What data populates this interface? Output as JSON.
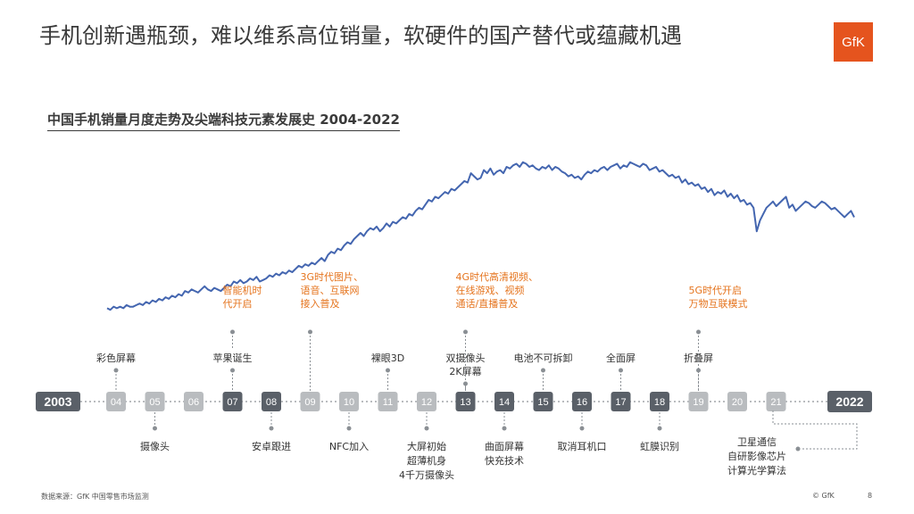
{
  "title": "手机创新遇瓶颈，难以维系高位销量，软硬件的国产替代或蕴藏机遇",
  "logo_text": "GfK",
  "footer": {
    "source": "数据来源：GfK 中国零售市场监测",
    "copyright": "© GfK",
    "page": "8"
  },
  "colors": {
    "line": "#4466b0",
    "accent": "#e5741e",
    "dark_box": "#5a6068",
    "light_box": "#b9bcbf",
    "logo": "#e5541e"
  },
  "chart_data": {
    "type": "line",
    "title": "中国手机销量月度走势及尖端科技元素发展史 2004-2022",
    "x_range": [
      "2004",
      "2022"
    ],
    "xlabel": "",
    "ylabel": "",
    "grid": false,
    "legend": "none",
    "series": [
      {
        "values": [
          6,
          5,
          7,
          6,
          7,
          6,
          8,
          7,
          7,
          8,
          9,
          8,
          10,
          9,
          11,
          10,
          12,
          11,
          13,
          12,
          14,
          13,
          15,
          14,
          17,
          16,
          18,
          17,
          16,
          18,
          20,
          18,
          17,
          19,
          18,
          17,
          19,
          21,
          20,
          23,
          22,
          24,
          22,
          23,
          25,
          24,
          26,
          23,
          24,
          25,
          27,
          26,
          28,
          27,
          29,
          28,
          30,
          29,
          31,
          33,
          32,
          34,
          33,
          35,
          34,
          36,
          38,
          36,
          40,
          42,
          41,
          44,
          43,
          46,
          48,
          47,
          50,
          52,
          54,
          52,
          55,
          57,
          56,
          58,
          55,
          57,
          60,
          58,
          61,
          60,
          62,
          64,
          63,
          66,
          65,
          68,
          70,
          69,
          72,
          75,
          74,
          77,
          76,
          78,
          80,
          79,
          82,
          81,
          83,
          85,
          87,
          86,
          92,
          90,
          88,
          89,
          94,
          92,
          95,
          91,
          93,
          94,
          92,
          96,
          95,
          97,
          98,
          96,
          99,
          98,
          96,
          97,
          95,
          94,
          96,
          95,
          97,
          94,
          96,
          95,
          93,
          92,
          90,
          91,
          89,
          90,
          88,
          91,
          93,
          92,
          94,
          93,
          95,
          96,
          94,
          96,
          97,
          98,
          95,
          97,
          96,
          99,
          98,
          97,
          96,
          98,
          97,
          94,
          95,
          96,
          93,
          94,
          92,
          90,
          91,
          89,
          90,
          86,
          88,
          85,
          86,
          84,
          85,
          82,
          83,
          80,
          82,
          78,
          80,
          79,
          81,
          77,
          79,
          76,
          78,
          74,
          75,
          72,
          73,
          70,
          55,
          62,
          66,
          70,
          72,
          74,
          71,
          73,
          75,
          77,
          70,
          72,
          68,
          70,
          72,
          74,
          73,
          71,
          70,
          72,
          74,
          73,
          71,
          69,
          70,
          68,
          66,
          64,
          66,
          68,
          64
        ]
      }
    ],
    "timeline": {
      "start_label": "2003",
      "end_label": "2022",
      "years": [
        "04",
        "05",
        "06",
        "07",
        "08",
        "09",
        "10",
        "11",
        "12",
        "13",
        "14",
        "15",
        "16",
        "17",
        "18",
        "19",
        "20",
        "21"
      ],
      "dark_years": [
        "07",
        "08",
        "13",
        "14",
        "15",
        "16",
        "17",
        "18"
      ]
    },
    "annotations_above": [
      {
        "year": "04",
        "lines": [
          "彩色屏幕"
        ]
      },
      {
        "year": "07",
        "lines": [
          "苹果诞生"
        ]
      },
      {
        "year": "11",
        "lines": [
          "裸眼3D"
        ]
      },
      {
        "year": "13",
        "lines": [
          "双摄像头",
          "2K屏幕"
        ]
      },
      {
        "year": "15",
        "lines": [
          "电池不可拆卸"
        ]
      },
      {
        "year": "17",
        "lines": [
          "全面屏"
        ]
      },
      {
        "year": "19",
        "lines": [
          "折叠屏"
        ]
      }
    ],
    "annotations_below": [
      {
        "year": "05",
        "lines": [
          "摄像头"
        ]
      },
      {
        "year": "08",
        "lines": [
          "安卓跟进"
        ]
      },
      {
        "year": "10",
        "lines": [
          "NFC加入"
        ]
      },
      {
        "year": "12",
        "lines": [
          "大屏初始",
          "超薄机身",
          "4千万摄像头"
        ]
      },
      {
        "year": "14",
        "lines": [
          "曲面屏幕",
          "快充技术"
        ]
      },
      {
        "year": "16",
        "lines": [
          "取消耳机口"
        ]
      },
      {
        "year": "18",
        "lines": [
          "虹膜识别"
        ]
      },
      {
        "year": "21",
        "lines": [
          "卫星通信",
          "自研影像芯片",
          "计算光学算法"
        ]
      }
    ],
    "annotations_highlight": [
      {
        "year": "07",
        "lines": [
          "智能机时",
          "代开启"
        ]
      },
      {
        "year": "09",
        "lines": [
          "3G时代图片、",
          "语音、互联网",
          "接入普及"
        ]
      },
      {
        "year": "13",
        "lines": [
          "4G时代高清视频、",
          "在线游戏、视频",
          "通话/直播普及"
        ]
      },
      {
        "year": "19",
        "lines": [
          "5G时代开启",
          "万物互联模式"
        ]
      }
    ]
  }
}
